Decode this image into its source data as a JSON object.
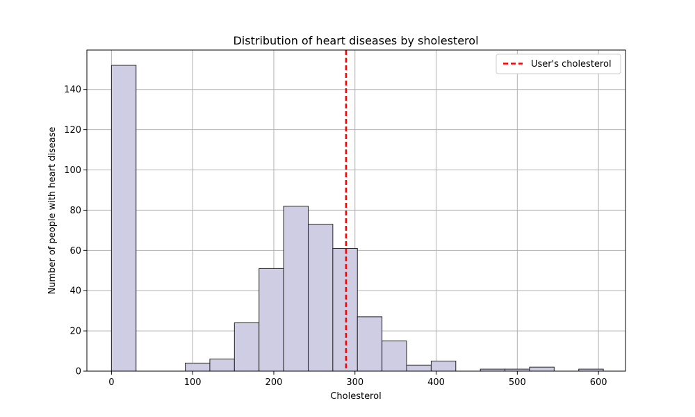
{
  "chart_data": {
    "type": "bar",
    "title": "Distribution of heart diseases by sholesterol",
    "xlabel": "Cholesterol",
    "ylabel": "Number of people with heart disease",
    "xlim": [
      -30.3,
      633.3
    ],
    "ylim": [
      0,
      159.6
    ],
    "xticks": [
      0,
      100,
      200,
      300,
      400,
      500,
      600
    ],
    "yticks": [
      0,
      20,
      40,
      60,
      80,
      100,
      120,
      140
    ],
    "bin_width": 30.3,
    "bins": [
      {
        "start": 0.0,
        "count": 152
      },
      {
        "start": 30.3,
        "count": 0
      },
      {
        "start": 60.6,
        "count": 0
      },
      {
        "start": 90.9,
        "count": 4
      },
      {
        "start": 121.2,
        "count": 6
      },
      {
        "start": 151.5,
        "count": 24
      },
      {
        "start": 181.8,
        "count": 51
      },
      {
        "start": 212.1,
        "count": 82
      },
      {
        "start": 242.4,
        "count": 73
      },
      {
        "start": 272.7,
        "count": 61
      },
      {
        "start": 303.0,
        "count": 27
      },
      {
        "start": 333.3,
        "count": 15
      },
      {
        "start": 363.6,
        "count": 3
      },
      {
        "start": 393.9,
        "count": 5
      },
      {
        "start": 424.2,
        "count": 0
      },
      {
        "start": 454.5,
        "count": 1
      },
      {
        "start": 484.8,
        "count": 1
      },
      {
        "start": 515.1,
        "count": 2
      },
      {
        "start": 545.4,
        "count": 0
      },
      {
        "start": 575.7,
        "count": 1
      }
    ],
    "bar_color": "#cfcde4",
    "bar_edge_color": "#222222",
    "reference_line": {
      "label": "User's cholesterol",
      "x": 289,
      "color": "#ff0000",
      "style": "dashed"
    },
    "grid": true,
    "legend_position": "top-right"
  }
}
